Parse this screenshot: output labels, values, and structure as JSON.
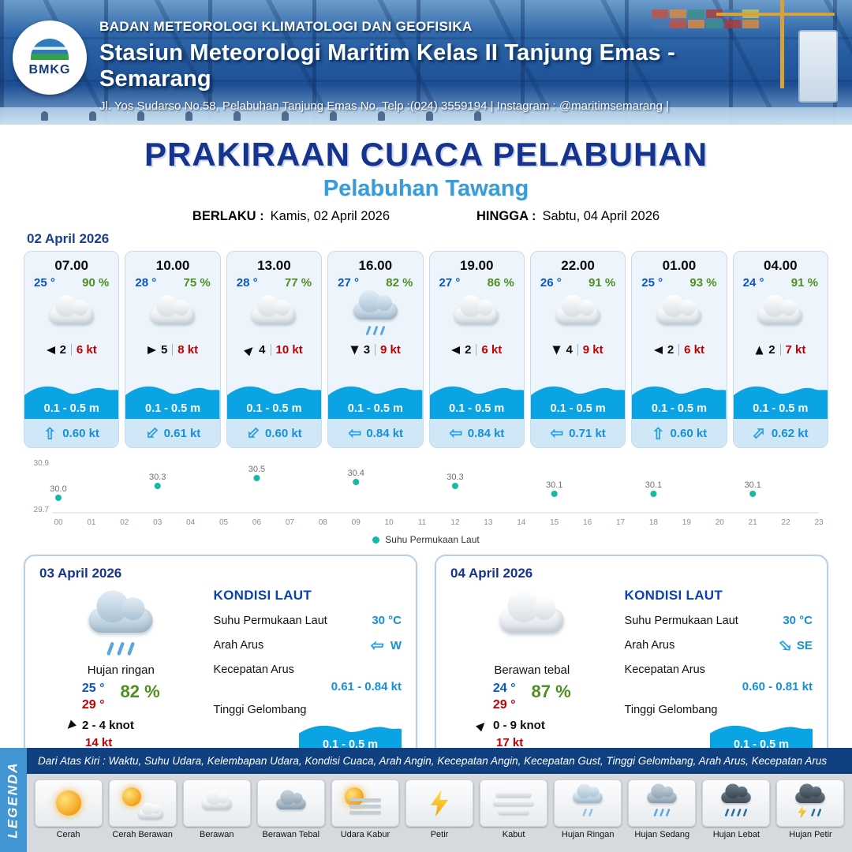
{
  "header": {
    "agency": "BADAN METEOROLOGI KLIMATOLOGI DAN GEOFISIKA",
    "station": "Stasiun Meteorologi Maritim Kelas II Tanjung Emas - Semarang",
    "address": "Jl. Yos Sudarso No.58, Pelabuhan Tanjung Emas No. Telp :(024) 3559194 | Instagram : @maritimsemarang |",
    "logo": "BMKG"
  },
  "title": {
    "main": "PRAKIRAAN CUACA PELABUHAN",
    "port": "Pelabuhan Tawang",
    "valid_from_label": "BERLAKU :",
    "valid_from": "Kamis, 02 April 2026",
    "valid_to_label": "HINGGA :",
    "valid_to": "Sabtu, 04 April 2026"
  },
  "forecast": {
    "date": "02 April 2026",
    "cards": [
      {
        "time": "07.00",
        "temp": "25 °",
        "rh": "90 %",
        "weather_icon": "berawan",
        "wind_dir": "W",
        "wind_force": "2",
        "wind_speed": "6 kt",
        "wave": "0.1 - 0.5 m",
        "current_dir": "N",
        "current_speed": "0.60 kt"
      },
      {
        "time": "10.00",
        "temp": "28 °",
        "rh": "75 %",
        "weather_icon": "berawan",
        "wind_dir": "E",
        "wind_force": "5",
        "wind_speed": "8 kt",
        "wave": "0.1 - 0.5 m",
        "current_dir": "SW",
        "current_speed": "0.61 kt"
      },
      {
        "time": "13.00",
        "temp": "28 °",
        "rh": "77 %",
        "weather_icon": "berawan",
        "wind_dir": "NE",
        "wind_force": "4",
        "wind_speed": "10 kt",
        "wave": "0.1 - 0.5 m",
        "current_dir": "SW",
        "current_speed": "0.60 kt"
      },
      {
        "time": "16.00",
        "temp": "27 °",
        "rh": "82 %",
        "weather_icon": "hujan-ringan",
        "wind_dir": "S",
        "wind_force": "3",
        "wind_speed": "9 kt",
        "wave": "0.1 - 0.5 m",
        "current_dir": "W",
        "current_speed": "0.84 kt"
      },
      {
        "time": "19.00",
        "temp": "27 °",
        "rh": "86 %",
        "weather_icon": "berawan",
        "wind_dir": "W",
        "wind_force": "2",
        "wind_speed": "6 kt",
        "wave": "0.1 - 0.5 m",
        "current_dir": "W",
        "current_speed": "0.84 kt"
      },
      {
        "time": "22.00",
        "temp": "26 °",
        "rh": "91 %",
        "weather_icon": "berawan",
        "wind_dir": "S",
        "wind_force": "4",
        "wind_speed": "9 kt",
        "wave": "0.1 - 0.5 m",
        "current_dir": "W",
        "current_speed": "0.71 kt"
      },
      {
        "time": "01.00",
        "temp": "25 °",
        "rh": "93 %",
        "weather_icon": "berawan",
        "wind_dir": "W",
        "wind_force": "2",
        "wind_speed": "6 kt",
        "wave": "0.1 - 0.5 m",
        "current_dir": "N",
        "current_speed": "0.60 kt"
      },
      {
        "time": "04.00",
        "temp": "24 °",
        "rh": "91 %",
        "weather_icon": "berawan",
        "wind_dir": "N",
        "wind_force": "2",
        "wind_speed": "7 kt",
        "wave": "0.1 - 0.5 m",
        "current_dir": "NE",
        "current_speed": "0.62 kt"
      }
    ]
  },
  "chart_data": {
    "type": "scatter",
    "series_name": "Suhu Permukaan Laut",
    "x": [
      0,
      3,
      6,
      9,
      12,
      15,
      18,
      21
    ],
    "values": [
      30.0,
      30.3,
      30.5,
      30.4,
      30.3,
      30.1,
      30.1,
      30.1
    ],
    "x_ticks": [
      "00",
      "01",
      "02",
      "03",
      "04",
      "05",
      "06",
      "07",
      "08",
      "09",
      "10",
      "11",
      "12",
      "13",
      "14",
      "15",
      "16",
      "17",
      "18",
      "19",
      "20",
      "21",
      "22",
      "23"
    ],
    "ylim": [
      29.7,
      30.9
    ],
    "xlabel": "",
    "ylabel": "",
    "dot_color": "#17b8a6",
    "grid": false,
    "legend_position": "bottom"
  },
  "outlook": [
    {
      "date": "03 April 2026",
      "condition": "Hujan ringan",
      "weather_icon": "hujan-ringan",
      "temp_min": "25 °",
      "temp_max": "29 °",
      "rh": "82 %",
      "wind_dir": "SW",
      "wind_range": "2 - 4 knot",
      "gust": "14 kt",
      "sea": {
        "heading": "KONDISI LAUT",
        "sst_label": "Suhu Permukaan Laut",
        "sst": "30 °C",
        "current_dir_label": "Arah Arus",
        "current_dir": "W",
        "current_speed_label": "Kecepatan Arus",
        "current_speed": "0.61 - 0.84 kt",
        "wave_label": "Tinggi Gelombang",
        "wave": "0.1 - 0.5 m"
      }
    },
    {
      "date": "04 April 2026",
      "condition": "Berawan tebal",
      "weather_icon": "berawan-tebal",
      "temp_min": "24 °",
      "temp_max": "29 °",
      "rh": "87 %",
      "wind_dir": "NE",
      "wind_range": "0  - 9 knot",
      "gust": "17 kt",
      "sea": {
        "heading": "KONDISI LAUT",
        "sst_label": "Suhu Permukaan Laut",
        "sst": "30 °C",
        "current_dir_label": "Arah Arus",
        "current_dir": "SE",
        "current_speed_label": "Kecepatan Arus",
        "current_speed": "0.60 - 0.81 kt",
        "wave_label": "Tinggi Gelombang",
        "wave": "0.1 - 0.5 m"
      }
    }
  ],
  "legend": {
    "vertical_label": "LEGENDA",
    "note": "Dari Atas Kiri : Waktu, Suhu Udara, Kelembapan Udara, Kondisi Cuaca, Arah Angin, Kecepatan Angin, Kecepatan Gust, Tinggi Gelombang, Arah Arus, Kecepatan Arus",
    "items": [
      {
        "label": "Cerah",
        "icon": "sun"
      },
      {
        "label": "Cerah Berawan",
        "icon": "sun-cloud"
      },
      {
        "label": "Berawan",
        "icon": "cloud"
      },
      {
        "label": "Berawan Tebal",
        "icon": "cloud-dark"
      },
      {
        "label": "Udara Kabur",
        "icon": "haze"
      },
      {
        "label": "Petir",
        "icon": "lightning"
      },
      {
        "label": "Kabut",
        "icon": "fog"
      },
      {
        "label": "Hujan Ringan",
        "icon": "rain-light"
      },
      {
        "label": "Hujan Sedang",
        "icon": "rain-medium"
      },
      {
        "label": "Hujan Lebat",
        "icon": "rain-heavy"
      },
      {
        "label": "Hujan Petir",
        "icon": "rain-thunder"
      }
    ]
  },
  "colors": {
    "temp": "#0a55cc",
    "humidity": "#4e8f1f",
    "speed_red": "#c00000",
    "accent_navy": "#16338f",
    "accent_blue": "#3a9bd9",
    "wave_fill": "#0aa3e4",
    "current_text": "#1590d8"
  }
}
